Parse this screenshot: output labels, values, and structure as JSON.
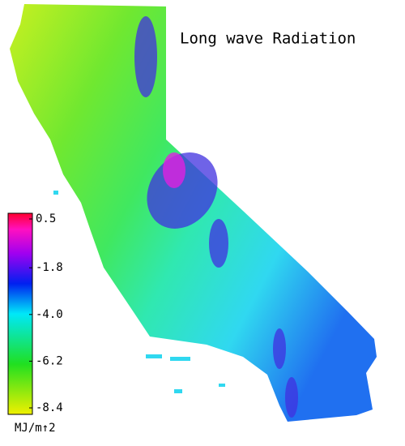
{
  "title": "Long wave Radiation",
  "colorbar": {
    "lim": [
      -8.4,
      0.5
    ],
    "ticks": [
      0.5,
      -1.8,
      {
        "value": -4,
        "label": "-4.0"
      },
      -6.2,
      -8.4
    ],
    "unit": "MJ/m↑2"
  }
}
